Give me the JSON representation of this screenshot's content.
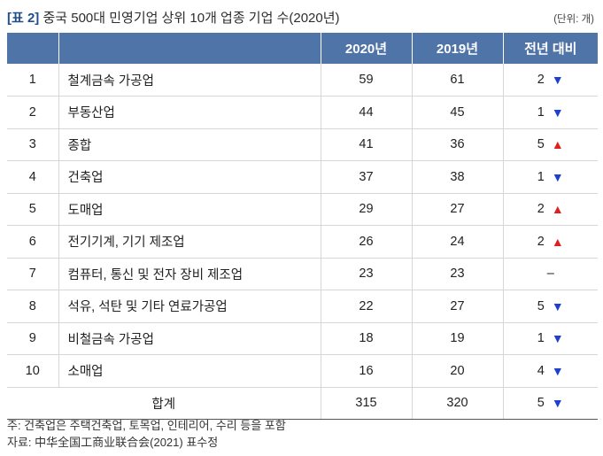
{
  "header": {
    "tag": "[표 2]",
    "title": "중국 500대 민영기업 상위 10개 업종 기업 수(2020년)",
    "unit": "(단위: 개)"
  },
  "table": {
    "columns": [
      "",
      "",
      "2020년",
      "2019년",
      "전년 대비"
    ],
    "rows": [
      {
        "rank": "1",
        "name": "철계금속 가공업",
        "y2020": "59",
        "y2019": "61",
        "change": "2",
        "dir": "down"
      },
      {
        "rank": "2",
        "name": "부동산업",
        "y2020": "44",
        "y2019": "45",
        "change": "1",
        "dir": "down"
      },
      {
        "rank": "3",
        "name": "종합",
        "y2020": "41",
        "y2019": "36",
        "change": "5",
        "dir": "up"
      },
      {
        "rank": "4",
        "name": "건축업",
        "y2020": "37",
        "y2019": "38",
        "change": "1",
        "dir": "down"
      },
      {
        "rank": "5",
        "name": "도매업",
        "y2020": "29",
        "y2019": "27",
        "change": "2",
        "dir": "up"
      },
      {
        "rank": "6",
        "name": "전기기계, 기기 제조업",
        "y2020": "26",
        "y2019": "24",
        "change": "2",
        "dir": "up"
      },
      {
        "rank": "7",
        "name": "컴퓨터, 통신 및 전자 장비 제조업",
        "y2020": "23",
        "y2019": "23",
        "change": "–",
        "dir": "none"
      },
      {
        "rank": "8",
        "name": "석유, 석탄 및 기타 연료가공업",
        "y2020": "22",
        "y2019": "27",
        "change": "5",
        "dir": "down"
      },
      {
        "rank": "9",
        "name": "비철금속 가공업",
        "y2020": "18",
        "y2019": "19",
        "change": "1",
        "dir": "down"
      },
      {
        "rank": "10",
        "name": "소매업",
        "y2020": "16",
        "y2019": "20",
        "change": "4",
        "dir": "down"
      }
    ],
    "total": {
      "label": "합계",
      "y2020": "315",
      "y2019": "320",
      "change": "5",
      "dir": "down"
    }
  },
  "notes": {
    "note": "주: 건축업은 주택건축업, 토목업, 인테리어, 수리 등을 포함",
    "source": "자료: 中华全国工商业联合会(2021) 표수정"
  },
  "colors": {
    "header_bg": "#4e74a8",
    "down_arrow": "#1f3fd0",
    "up_arrow": "#e02020"
  },
  "icons": {
    "down": "triangle-down-icon",
    "up": "triangle-up-icon"
  }
}
